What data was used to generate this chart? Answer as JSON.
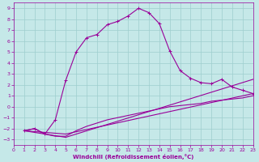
{
  "xlabel": "Windchill (Refroidissement éolien,°C)",
  "xlim": [
    0,
    23
  ],
  "ylim": [
    -3.5,
    9.5
  ],
  "xticks": [
    0,
    1,
    2,
    3,
    4,
    5,
    6,
    7,
    8,
    9,
    10,
    11,
    12,
    13,
    14,
    15,
    16,
    17,
    18,
    19,
    20,
    21,
    22,
    23
  ],
  "yticks": [
    -3,
    -2,
    -1,
    0,
    1,
    2,
    3,
    4,
    5,
    6,
    7,
    8,
    9
  ],
  "bg_color": "#c5e8e8",
  "grid_color": "#9ecece",
  "line_color": "#990099",
  "line1_x": [
    1,
    2,
    3,
    4,
    5,
    6,
    7,
    8,
    9,
    10,
    11,
    12,
    13,
    14,
    15,
    16,
    17,
    18,
    19,
    20,
    21,
    22,
    23
  ],
  "line1_y": [
    -2.2,
    -2.0,
    -2.5,
    -1.2,
    2.4,
    5.0,
    6.3,
    6.6,
    7.5,
    7.8,
    8.3,
    9.0,
    8.6,
    7.6,
    5.1,
    3.3,
    2.6,
    2.2,
    2.1,
    2.5,
    1.8,
    1.5,
    1.2
  ],
  "line2_x": [
    1,
    2,
    3,
    4,
    5,
    6,
    7,
    8,
    9,
    10,
    11,
    12,
    13,
    14,
    15,
    16,
    17,
    18,
    19,
    20,
    21,
    22,
    23
  ],
  "line2_y": [
    -2.2,
    -2.0,
    -2.5,
    -2.7,
    -2.7,
    -2.2,
    -1.8,
    -1.5,
    -1.2,
    -1.0,
    -0.8,
    -0.6,
    -0.4,
    -0.2,
    0.0,
    0.1,
    0.2,
    0.3,
    0.5,
    0.6,
    0.7,
    0.8,
    1.0
  ],
  "line3_x": [
    1,
    5,
    23
  ],
  "line3_y": [
    -2.2,
    -2.8,
    2.5
  ],
  "line4_x": [
    1,
    5,
    23
  ],
  "line4_y": [
    -2.2,
    -2.5,
    1.2
  ]
}
